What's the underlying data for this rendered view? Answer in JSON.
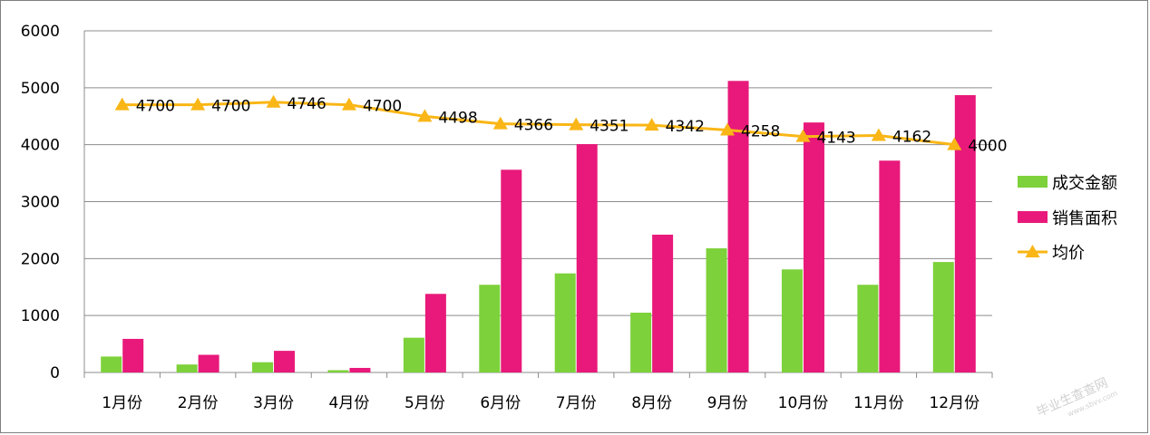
{
  "chart_data": {
    "type": "bar",
    "categories": [
      "1月份",
      "2月份",
      "3月份",
      "4月份",
      "5月份",
      "6月份",
      "7月份",
      "8月份",
      "9月份",
      "10月份",
      "11月份",
      "12月份"
    ],
    "series": [
      {
        "name": "成交金额",
        "type": "bar",
        "color": "#7dd13a",
        "values": [
          280,
          140,
          180,
          40,
          610,
          1540,
          1740,
          1050,
          2180,
          1810,
          1540,
          1940
        ]
      },
      {
        "name": "销售面积",
        "type": "bar",
        "color": "#e8197a",
        "values": [
          590,
          310,
          380,
          80,
          1380,
          3560,
          4010,
          2420,
          5120,
          4390,
          3720,
          4870
        ]
      },
      {
        "name": "均价",
        "type": "line",
        "color": "#f9b616",
        "marker": "triangle",
        "values": [
          4700,
          4700,
          4746,
          4700,
          4498,
          4366,
          4351,
          4342,
          4258,
          4143,
          4162,
          4000
        ]
      }
    ],
    "ylim": [
      0,
      6000
    ],
    "yticks": [
      "0",
      "1000",
      "2000",
      "3000",
      "4000",
      "5000",
      "6000"
    ],
    "grid": true,
    "legend": "right",
    "title": "",
    "xlabel": "",
    "ylabel": ""
  },
  "watermark": {
    "text": "毕业生查查网",
    "subtext": "www.sbvv.com"
  }
}
